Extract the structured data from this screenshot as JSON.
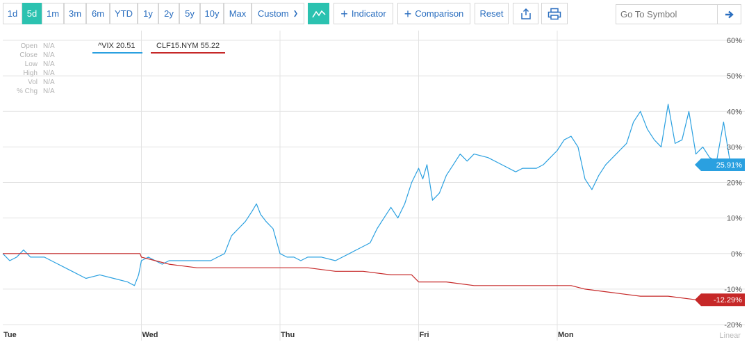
{
  "toolbar": {
    "ranges": [
      {
        "label": "1d",
        "active": false
      },
      {
        "label": "5d",
        "active": true
      },
      {
        "label": "1m",
        "active": false
      },
      {
        "label": "3m",
        "active": false
      },
      {
        "label": "6m",
        "active": false
      },
      {
        "label": "YTD",
        "active": false
      },
      {
        "label": "1y",
        "active": false
      },
      {
        "label": "2y",
        "active": false
      },
      {
        "label": "5y",
        "active": false
      },
      {
        "label": "10y",
        "active": false
      },
      {
        "label": "Max",
        "active": false
      }
    ],
    "custom_label": "Custom",
    "indicator_label": "Indicator",
    "comparison_label": "Comparison",
    "reset_label": "Reset",
    "search_placeholder": "Go To Symbol"
  },
  "ohlc": [
    {
      "label": "Open",
      "value": "N/A"
    },
    {
      "label": "Close",
      "value": "N/A"
    },
    {
      "label": "Low",
      "value": "N/A"
    },
    {
      "label": "High",
      "value": "N/A"
    },
    {
      "label": "Vol",
      "value": "N/A"
    },
    {
      "label": "% Chg",
      "value": "N/A"
    }
  ],
  "legend": {
    "vix": "^VIX 20.51",
    "clf": "CLF15.NYM 55.22"
  },
  "chart_data": {
    "type": "line",
    "y_axis_labels": [
      "60%",
      "50%",
      "40%",
      "30%",
      "20%",
      "10%",
      "0%",
      "-10%",
      "-20%"
    ],
    "ylim": [
      -20,
      60
    ],
    "x_axis_labels": [
      "Tue",
      "Wed",
      "Thu",
      "Fri",
      "Mon"
    ],
    "xlim": [
      0,
      5.35
    ],
    "scale_label": "Linear",
    "grid": true,
    "series": [
      {
        "name": "^VIX",
        "color": "#2aa0e0",
        "last_label": "25.91%",
        "points": [
          [
            0,
            0
          ],
          [
            0.05,
            -2
          ],
          [
            0.1,
            -1
          ],
          [
            0.15,
            1
          ],
          [
            0.2,
            -1
          ],
          [
            0.3,
            -1
          ],
          [
            0.4,
            -3
          ],
          [
            0.5,
            -5
          ],
          [
            0.6,
            -7
          ],
          [
            0.7,
            -6
          ],
          [
            0.8,
            -7
          ],
          [
            0.9,
            -8
          ],
          [
            0.95,
            -9
          ],
          [
            0.98,
            -6
          ],
          [
            1.0,
            -2
          ],
          [
            1.05,
            -1
          ],
          [
            1.1,
            -2
          ],
          [
            1.15,
            -3
          ],
          [
            1.2,
            -2
          ],
          [
            1.3,
            -2
          ],
          [
            1.4,
            -2
          ],
          [
            1.5,
            -2
          ],
          [
            1.55,
            -1
          ],
          [
            1.6,
            0
          ],
          [
            1.65,
            5
          ],
          [
            1.7,
            7
          ],
          [
            1.75,
            9
          ],
          [
            1.8,
            12
          ],
          [
            1.83,
            14
          ],
          [
            1.86,
            11
          ],
          [
            1.9,
            9
          ],
          [
            1.95,
            7
          ],
          [
            2.0,
            0
          ],
          [
            2.05,
            -1
          ],
          [
            2.1,
            -1
          ],
          [
            2.15,
            -2
          ],
          [
            2.2,
            -1
          ],
          [
            2.3,
            -1
          ],
          [
            2.4,
            -2
          ],
          [
            2.45,
            -1
          ],
          [
            2.5,
            0
          ],
          [
            2.55,
            1
          ],
          [
            2.6,
            2
          ],
          [
            2.65,
            3
          ],
          [
            2.7,
            7
          ],
          [
            2.75,
            10
          ],
          [
            2.8,
            13
          ],
          [
            2.85,
            10
          ],
          [
            2.9,
            14
          ],
          [
            2.95,
            20
          ],
          [
            3.0,
            24
          ],
          [
            3.03,
            21
          ],
          [
            3.06,
            25
          ],
          [
            3.1,
            15
          ],
          [
            3.15,
            17
          ],
          [
            3.2,
            22
          ],
          [
            3.25,
            25
          ],
          [
            3.3,
            28
          ],
          [
            3.35,
            26
          ],
          [
            3.4,
            28
          ],
          [
            3.5,
            27
          ],
          [
            3.6,
            25
          ],
          [
            3.7,
            23
          ],
          [
            3.75,
            24
          ],
          [
            3.8,
            24
          ],
          [
            3.85,
            24
          ],
          [
            3.9,
            25
          ],
          [
            3.95,
            27
          ],
          [
            4.0,
            29
          ],
          [
            4.05,
            32
          ],
          [
            4.1,
            33
          ],
          [
            4.15,
            30
          ],
          [
            4.2,
            21
          ],
          [
            4.25,
            18
          ],
          [
            4.3,
            22
          ],
          [
            4.35,
            25
          ],
          [
            4.4,
            27
          ],
          [
            4.45,
            29
          ],
          [
            4.5,
            31
          ],
          [
            4.55,
            37
          ],
          [
            4.6,
            40
          ],
          [
            4.65,
            35
          ],
          [
            4.7,
            32
          ],
          [
            4.75,
            30
          ],
          [
            4.8,
            42
          ],
          [
            4.85,
            31
          ],
          [
            4.9,
            32
          ],
          [
            4.95,
            40
          ],
          [
            5.0,
            28
          ],
          [
            5.05,
            30
          ],
          [
            5.1,
            27
          ],
          [
            5.15,
            26
          ],
          [
            5.2,
            37
          ],
          [
            5.25,
            25
          ]
        ]
      },
      {
        "name": "CLF15.NYM",
        "color": "#c62828",
        "last_label": "-12.29%",
        "points": [
          [
            0,
            0
          ],
          [
            0.2,
            0
          ],
          [
            0.4,
            0
          ],
          [
            0.6,
            0
          ],
          [
            0.8,
            0
          ],
          [
            0.99,
            0
          ],
          [
            1.0,
            -1
          ],
          [
            1.1,
            -2
          ],
          [
            1.2,
            -3
          ],
          [
            1.4,
            -4
          ],
          [
            1.6,
            -4
          ],
          [
            1.8,
            -4
          ],
          [
            2.0,
            -4
          ],
          [
            2.2,
            -4
          ],
          [
            2.4,
            -5
          ],
          [
            2.6,
            -5
          ],
          [
            2.8,
            -6
          ],
          [
            2.95,
            -6
          ],
          [
            3.0,
            -8
          ],
          [
            3.2,
            -8
          ],
          [
            3.4,
            -9
          ],
          [
            3.6,
            -9
          ],
          [
            3.8,
            -9
          ],
          [
            4.0,
            -9
          ],
          [
            4.1,
            -9
          ],
          [
            4.2,
            -10
          ],
          [
            4.4,
            -11
          ],
          [
            4.6,
            -12
          ],
          [
            4.8,
            -12
          ],
          [
            5.0,
            -13
          ],
          [
            5.2,
            -13
          ],
          [
            5.25,
            -13
          ]
        ]
      }
    ]
  }
}
